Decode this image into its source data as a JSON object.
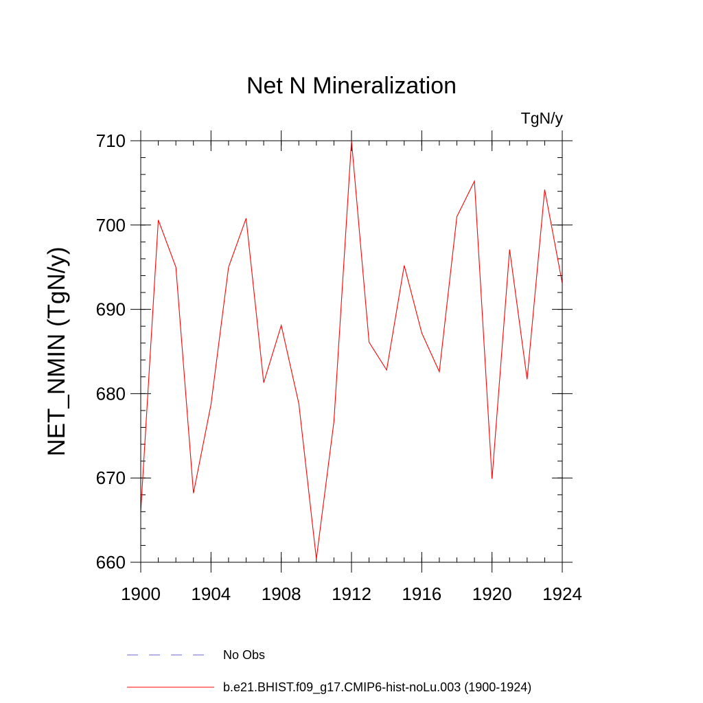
{
  "chart_data": {
    "type": "line",
    "title": "Net N Mineralization",
    "units_label": "TgN/y",
    "ylabel": "NET_NMIN  (TgN/y)",
    "xlabel": "",
    "xlim": [
      1900,
      1924
    ],
    "ylim": [
      660,
      710
    ],
    "x_ticks": [
      1900,
      1904,
      1908,
      1912,
      1916,
      1920,
      1924
    ],
    "y_ticks": [
      660,
      670,
      680,
      690,
      700,
      710
    ],
    "x_minor_step": 1,
    "y_minor_step": 2,
    "grid": false,
    "legend_position": "bottom",
    "series": [
      {
        "name": "No Obs",
        "color": "#6a6ad0",
        "dash": "dashed",
        "x": [],
        "y": []
      },
      {
        "name": "b.e21.BHIST.f09_g17.CMIP6-hist-noLu.003 (1900-1924)",
        "color": "#ff0000",
        "dash": "solid",
        "x": [
          1900,
          1901,
          1902,
          1903,
          1904,
          1905,
          1906,
          1907,
          1908,
          1909,
          1910,
          1911,
          1912,
          1913,
          1914,
          1915,
          1916,
          1917,
          1918,
          1919,
          1920,
          1921,
          1922,
          1923,
          1924
        ],
        "y": [
          666.0,
          700.6,
          695.0,
          668.2,
          678.7,
          695.0,
          700.8,
          681.3,
          688.1,
          678.8,
          660.4,
          676.7,
          710.0,
          686.1,
          682.8,
          695.2,
          687.2,
          682.6,
          701.0,
          705.2,
          669.9,
          697.1,
          681.7,
          704.2,
          693.1
        ]
      }
    ]
  }
}
